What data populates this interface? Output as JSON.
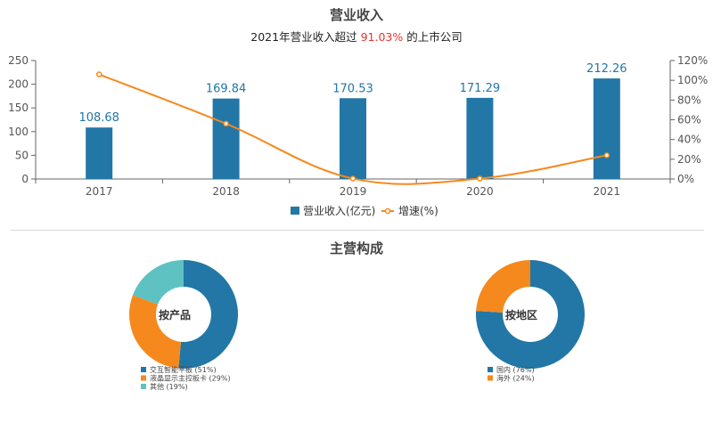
{
  "header": {
    "title": "营业收入",
    "subtitle_pre": "2021年营业收入超过",
    "subtitle_value": "91.03%",
    "subtitle_post": "的上市公司"
  },
  "section2": {
    "title": "主营构成"
  },
  "colors": {
    "bar": "#2277a6",
    "line": "#f5891d",
    "teal": "#5ec2c3"
  },
  "chart_data": [
    {
      "type": "bar",
      "categories": [
        "2017",
        "2018",
        "2019",
        "2020",
        "2021"
      ],
      "series": [
        {
          "name": "营业收入(亿元)",
          "type": "bar",
          "axis": "left",
          "values": [
            108.68,
            169.84,
            170.53,
            171.29,
            212.26
          ]
        },
        {
          "name": "增速(%)",
          "type": "line",
          "axis": "right",
          "values": [
            106,
            56,
            0.4,
            0.4,
            24
          ]
        }
      ],
      "y_left": {
        "range": [
          0,
          250
        ],
        "ticks": [
          "0",
          "50",
          "100",
          "150",
          "200",
          "250"
        ]
      },
      "y_right": {
        "range": [
          0,
          120
        ],
        "ticks": [
          "0%",
          "20%",
          "40%",
          "60%",
          "80%",
          "100%",
          "120%"
        ]
      },
      "legend": "bottom-center"
    },
    {
      "type": "pie",
      "center_label": "按产品",
      "slices": [
        {
          "label": "交互智能平板 (51%)",
          "value": 51,
          "color": "#2277a6"
        },
        {
          "label": "液晶显示主控板卡 (29%)",
          "value": 29,
          "color": "#f5891d"
        },
        {
          "label": "其他 (19%)",
          "value": 19,
          "color": "#5ec2c3"
        }
      ]
    },
    {
      "type": "pie",
      "center_label": "按地区",
      "slices": [
        {
          "label": "国内 (76%)",
          "value": 76,
          "color": "#2277a6"
        },
        {
          "label": "海外 (24%)",
          "value": 24,
          "color": "#f5891d"
        }
      ]
    }
  ]
}
